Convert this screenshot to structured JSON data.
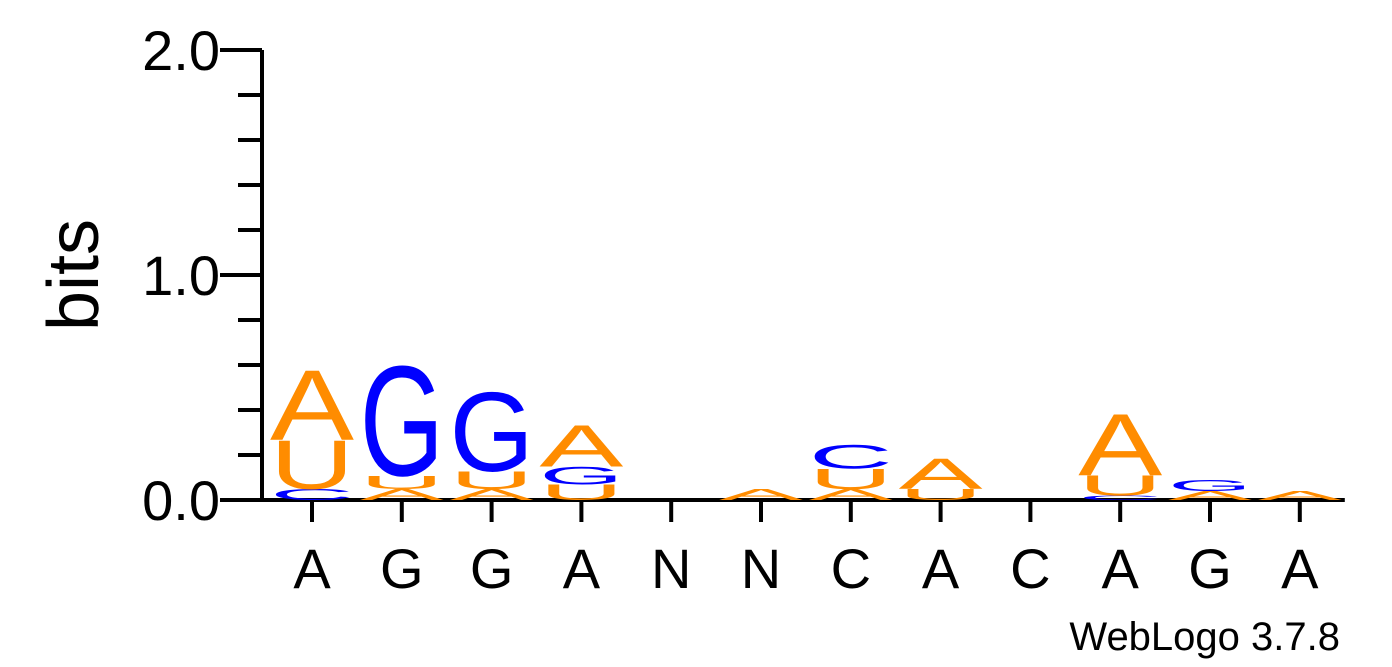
{
  "chart_data": {
    "type": "sequence-logo",
    "ylabel": "bits",
    "ylim": [
      0,
      2
    ],
    "y_ticks": [
      "0.0",
      "1.0",
      "2.0"
    ],
    "footer": "WebLogo 3.7.8",
    "colors": {
      "A": "#ff8c00",
      "U": "#ff8c00",
      "G": "#0000ff",
      "C": "#0000ff"
    },
    "positions": [
      {
        "label": "A",
        "stack": [
          {
            "base": "C",
            "bits": 0.05
          },
          {
            "base": "U",
            "bits": 0.22
          },
          {
            "base": "A",
            "bits": 0.32
          }
        ]
      },
      {
        "label": "G",
        "stack": [
          {
            "base": "A",
            "bits": 0.05
          },
          {
            "base": "U",
            "bits": 0.06
          },
          {
            "base": "G",
            "bits": 0.5
          }
        ]
      },
      {
        "label": "G",
        "stack": [
          {
            "base": "A",
            "bits": 0.05
          },
          {
            "base": "U",
            "bits": 0.08
          },
          {
            "base": "G",
            "bits": 0.36
          }
        ]
      },
      {
        "label": "A",
        "stack": [
          {
            "base": "U",
            "bits": 0.07
          },
          {
            "base": "G",
            "bits": 0.08
          },
          {
            "base": "A",
            "bits": 0.19
          }
        ]
      },
      {
        "label": "N",
        "stack": []
      },
      {
        "label": "N",
        "stack": [
          {
            "base": "A",
            "bits": 0.05
          }
        ]
      },
      {
        "label": "C",
        "stack": [
          {
            "base": "A",
            "bits": 0.05
          },
          {
            "base": "U",
            "bits": 0.09
          },
          {
            "base": "C",
            "bits": 0.11
          }
        ]
      },
      {
        "label": "A",
        "stack": [
          {
            "base": "U",
            "bits": 0.05
          },
          {
            "base": "A",
            "bits": 0.14
          }
        ]
      },
      {
        "label": "C",
        "stack": []
      },
      {
        "label": "A",
        "stack": [
          {
            "base": "C",
            "bits": 0.02
          },
          {
            "base": "U",
            "bits": 0.09
          },
          {
            "base": "A",
            "bits": 0.28
          }
        ]
      },
      {
        "label": "G",
        "stack": [
          {
            "base": "A",
            "bits": 0.04
          },
          {
            "base": "G",
            "bits": 0.05
          }
        ]
      },
      {
        "label": "A",
        "stack": [
          {
            "base": "A",
            "bits": 0.04
          }
        ]
      }
    ]
  }
}
